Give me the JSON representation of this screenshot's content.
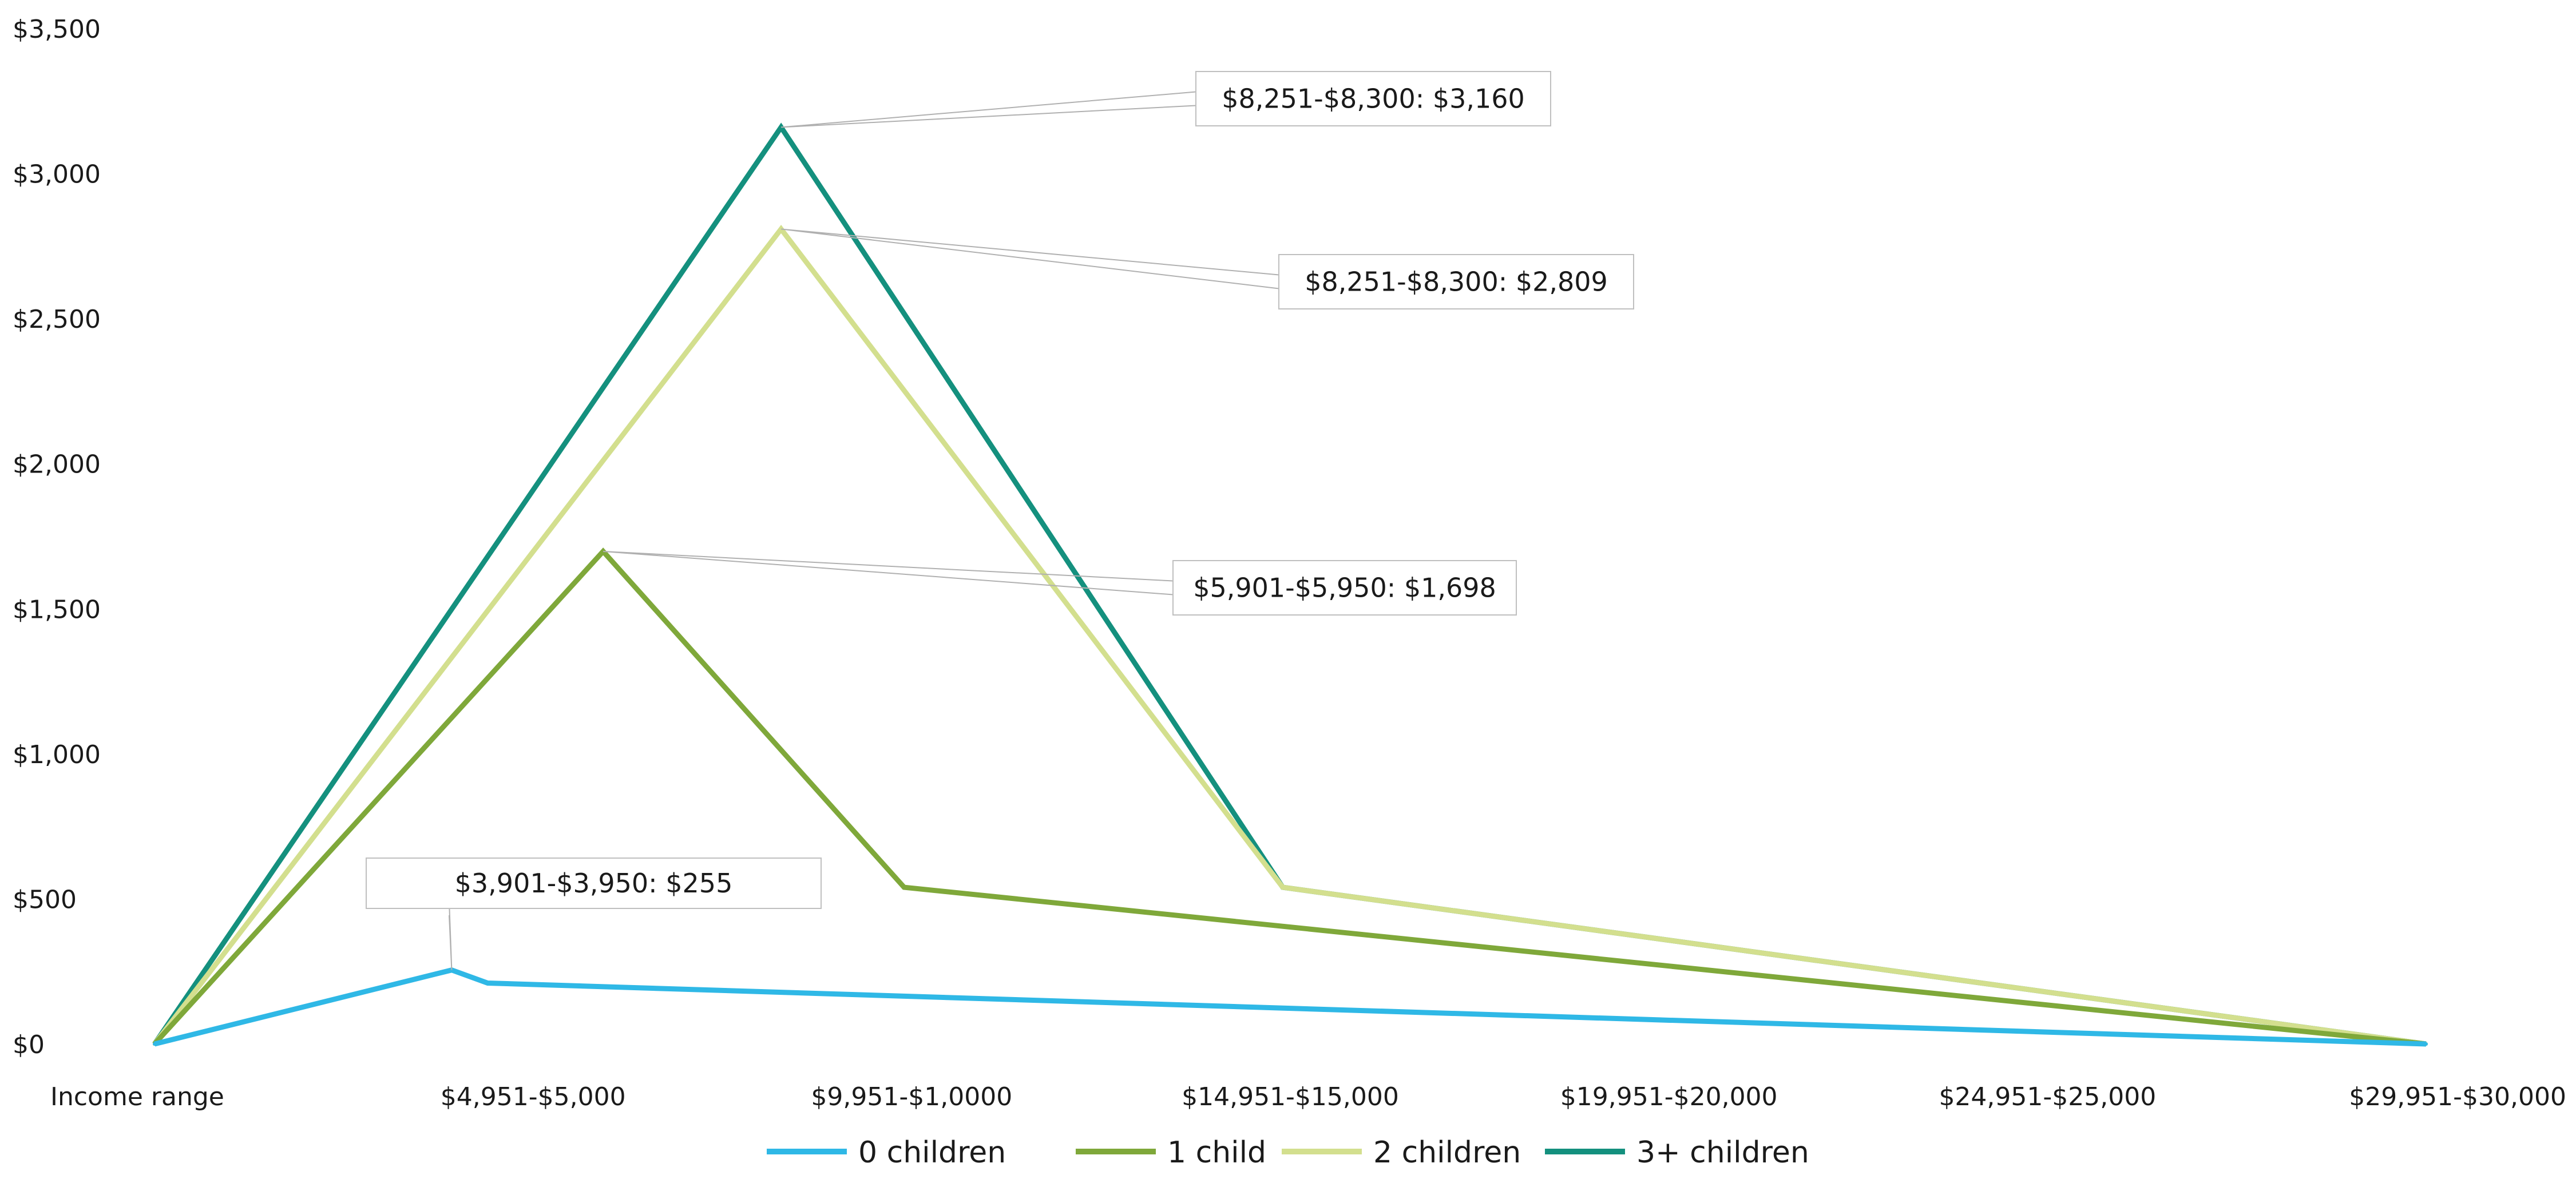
{
  "chart_data": {
    "type": "line",
    "title": "",
    "xlabel": "",
    "ylabel": "",
    "ylim": [
      0,
      3500
    ],
    "y_ticks": [
      "$0",
      "$500",
      "$1,000",
      "$1,500",
      "$2,000",
      "$2,500",
      "$3,000",
      "$3,500"
    ],
    "y_tick_values": [
      0,
      500,
      1000,
      1500,
      2000,
      2500,
      3000,
      3500
    ],
    "x_labels": [
      "Income range",
      "$4,951-$5,000",
      "$9,951-$1,0000",
      "$14,951-$15,000",
      "$19,951-$20,000",
      "$24,951-$25,000",
      "$29,951-$30,000"
    ],
    "x_label_positions": [
      0,
      5000,
      10000,
      15000,
      20000,
      25000,
      30000
    ],
    "xlim": [
      0,
      30000
    ],
    "grid": false,
    "legend_position": "bottom",
    "series": [
      {
        "name": "0 children",
        "color": "#2fb8e6",
        "x": [
          0,
          3925,
          4400,
          30000
        ],
        "values": [
          0,
          255,
          210,
          0
        ]
      },
      {
        "name": "1 child",
        "color": "#7fa83a",
        "x": [
          0,
          5925,
          9900,
          30000
        ],
        "values": [
          0,
          1698,
          540,
          0
        ]
      },
      {
        "name": "2 children",
        "color": "#d3df8e",
        "x": [
          0,
          8275,
          14900,
          30000
        ],
        "values": [
          0,
          2809,
          540,
          0
        ]
      },
      {
        "name": "3+ children",
        "color": "#14907e",
        "x": [
          0,
          8275,
          14900,
          30000
        ],
        "values": [
          0,
          3160,
          540,
          0
        ]
      }
    ],
    "annotations": [
      {
        "series": 3,
        "point": 1,
        "text": "$8,251-$8,300: $3,160"
      },
      {
        "series": 2,
        "point": 1,
        "text": "$8,251-$8,300: $2,809"
      },
      {
        "series": 1,
        "point": 1,
        "text": "$5,901-$5,950: $1,698"
      },
      {
        "series": 0,
        "point": 1,
        "text": "$3,901-$3,950: $255"
      }
    ]
  }
}
